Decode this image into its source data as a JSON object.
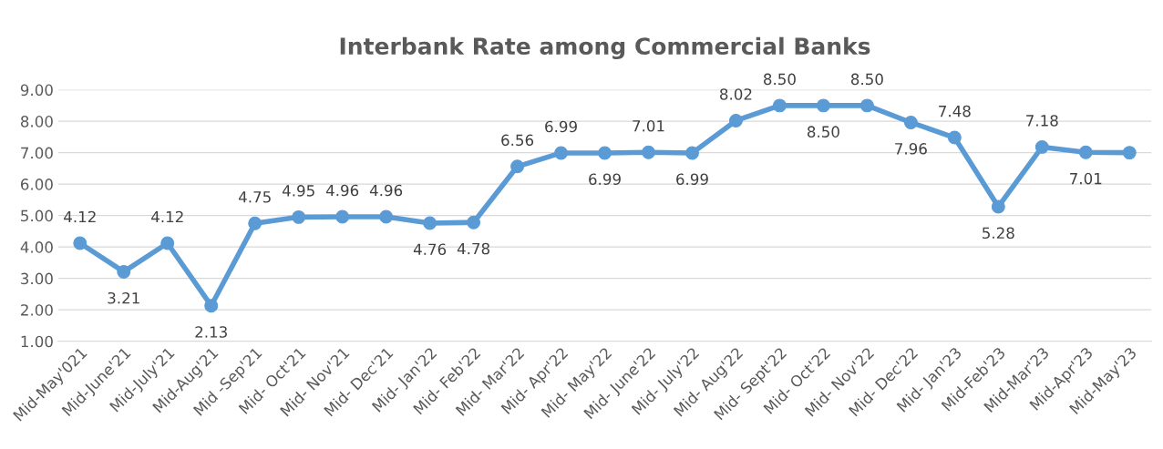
{
  "chart_data": {
    "type": "line",
    "title": "Interbank Rate among Commercial Banks",
    "categories": [
      "Mid-May'021",
      "Mid-June'21",
      "Mid-July'21",
      "Mid-Aug'21",
      "Mid -Sep'21",
      "Mid- Oct'21",
      "Mid- Nov'21",
      "Mid- Dec'21",
      "Mid- Jan'22",
      "Mid- Feb'22",
      "Mid- Mar'22",
      "Mid- Apr'22",
      "Mid- May'22",
      "Mid- June'22",
      "Mid- July'22",
      "Mid- Aug'22",
      "Mid- Sept'22",
      "Mid- Oct'22",
      "Mid- Nov'22",
      "Mid- Dec'22",
      "Mid- Jan'23",
      "Mid-Feb'23",
      "Mid-Mar'23",
      "Mid-Apr'23",
      "Mid-May'23"
    ],
    "series": [
      {
        "color": "#5b9bd5",
        "values": [
          4.12,
          3.21,
          4.12,
          2.13,
          4.75,
          4.95,
          4.96,
          4.96,
          4.76,
          4.78,
          6.56,
          6.99,
          6.99,
          7.01,
          6.99,
          8.02,
          8.5,
          8.5,
          8.5,
          7.96,
          7.48,
          5.28,
          7.18,
          7.01,
          7.0
        ],
        "value_labels": [
          "4.12",
          "3.21",
          "4.12",
          "2.13",
          "4.75",
          "4.95",
          "4.96",
          "4.96",
          "4.76",
          "4.78",
          "6.56",
          "6.99",
          "6.99",
          "7.01",
          "6.99",
          "8.02",
          "8.50",
          "8.50",
          "8.50",
          "7.96",
          "7.48",
          "5.28",
          "7.18",
          "7.01",
          null
        ]
      }
    ],
    "ylim": [
      1,
      9
    ],
    "yticks": [
      {
        "value": 1,
        "label": "1.00"
      },
      {
        "value": 2,
        "label": "2.00"
      },
      {
        "value": 3,
        "label": "3.00"
      },
      {
        "value": 4,
        "label": "4.00"
      },
      {
        "value": 5,
        "label": "5.00"
      },
      {
        "value": 6,
        "label": "6.00"
      },
      {
        "value": 7,
        "label": "7.00"
      },
      {
        "value": 8,
        "label": "8.00"
      },
      {
        "value": 9,
        "label": "9.00"
      }
    ],
    "grid": "y",
    "marker": "circle",
    "line_style": "solid",
    "legend": false
  }
}
